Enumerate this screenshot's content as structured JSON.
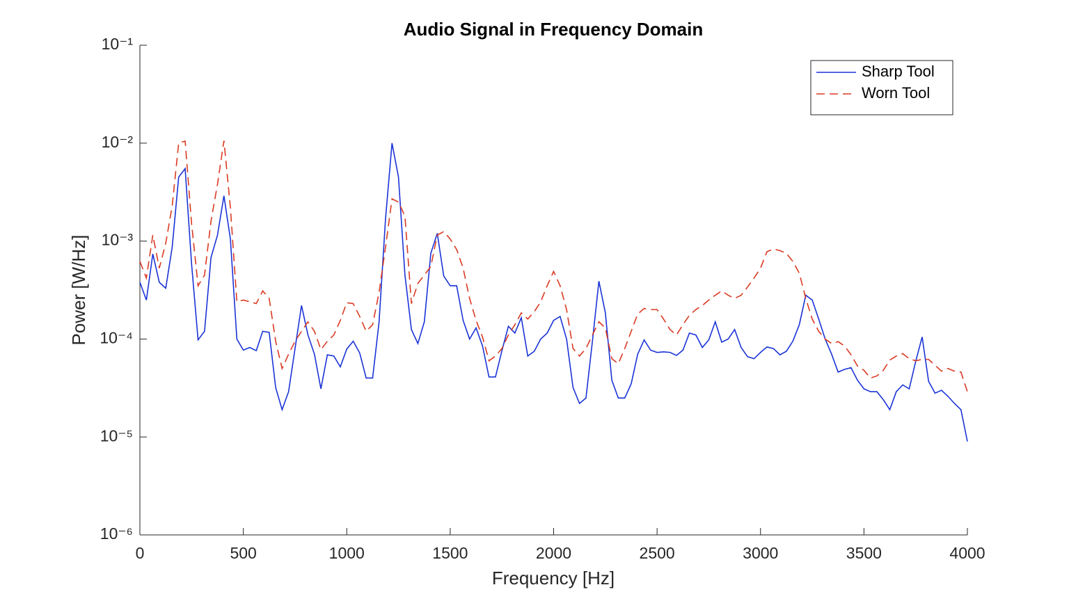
{
  "chart_data": {
    "type": "line",
    "title": "Audio Signal in Frequency Domain",
    "x_label": "Frequency [Hz]",
    "y_label": "Power [W/Hz]",
    "log_y": true,
    "grid": false,
    "legend": "northeast",
    "xlim": [
      0,
      4000
    ],
    "xticks": [
      0,
      500,
      1000,
      1500,
      2000,
      2500,
      3000,
      3500,
      4000
    ],
    "ylim": [
      1e-06,
      0.1
    ],
    "yticks": [
      {
        "value": 1e-06,
        "label": "10⁻⁶"
      },
      {
        "value": 1e-05,
        "label": "10⁻⁵"
      },
      {
        "value": 0.0001,
        "label": "10⁻⁴"
      },
      {
        "value": 0.001,
        "label": "10⁻³"
      },
      {
        "value": 0.01,
        "label": "10⁻²"
      },
      {
        "value": 0.1,
        "label": "10⁻¹"
      }
    ],
    "x": [
      0,
      31.25,
      62.5,
      93.75,
      125,
      156.25,
      187.5,
      218.75,
      250,
      281.25,
      312.5,
      343.75,
      375,
      406.25,
      437.5,
      468.75,
      500,
      531.25,
      562.5,
      593.75,
      625,
      656.25,
      687.5,
      718.75,
      750,
      781.25,
      812.5,
      843.75,
      875,
      906.25,
      937.5,
      968.75,
      1000,
      1031.25,
      1062.5,
      1093.75,
      1125,
      1156.25,
      1187.5,
      1218.75,
      1250,
      1281.25,
      1312.5,
      1343.75,
      1375,
      1406.25,
      1437.5,
      1468.75,
      1500,
      1531.25,
      1562.5,
      1593.75,
      1625,
      1656.25,
      1687.5,
      1718.75,
      1750,
      1781.25,
      1812.5,
      1843.75,
      1875,
      1906.25,
      1937.5,
      1968.75,
      2000,
      2031.25,
      2062.5,
      2093.75,
      2125,
      2156.25,
      2187.5,
      2218.75,
      2250,
      2281.25,
      2312.5,
      2343.75,
      2375,
      2406.25,
      2437.5,
      2468.75,
      2500,
      2531.25,
      2562.5,
      2593.75,
      2625,
      2656.25,
      2687.5,
      2718.75,
      2750,
      2781.25,
      2812.5,
      2843.75,
      2875,
      2906.25,
      2937.5,
      2968.75,
      3000,
      3031.25,
      3062.5,
      3093.75,
      3125,
      3156.25,
      3187.5,
      3218.75,
      3250,
      3281.25,
      3312.5,
      3343.75,
      3375,
      3406.25,
      3437.5,
      3468.75,
      3500,
      3531.25,
      3562.5,
      3593.75,
      3625,
      3656.25,
      3687.5,
      3718.75,
      3750,
      3781.25,
      3812.5,
      3843.75,
      3875,
      3906.25,
      3937.5,
      3968.75,
      4000
    ],
    "series": [
      {
        "name": "Sharp Tool",
        "color": "#1a33d6",
        "dash": "solid",
        "values": [
          0.00038,
          0.00025,
          0.00074,
          0.00038,
          0.00033,
          0.00087,
          0.0045,
          0.0055,
          0.00058,
          9.8e-05,
          0.00012,
          0.00068,
          0.00115,
          0.0029,
          0.00105,
          0.0001,
          7.7e-05,
          8.2e-05,
          7.6e-05,
          0.00012,
          0.000117,
          3.2e-05,
          1.9e-05,
          2.9e-05,
          8e-05,
          0.00022,
          0.00011,
          7e-05,
          3.1e-05,
          6.9e-05,
          6.7e-05,
          5.2e-05,
          7.9e-05,
          9.5e-05,
          7.2e-05,
          4e-05,
          4e-05,
          0.00015,
          0.0017,
          0.01,
          0.0045,
          0.00045,
          0.000125,
          9e-05,
          0.00015,
          0.00075,
          0.0012,
          0.00044,
          0.00035,
          0.00035,
          0.000155,
          0.0001,
          0.00013,
          8.5e-05,
          4.1e-05,
          4.1e-05,
          7.6e-05,
          0.000135,
          0.000115,
          0.000165,
          6.7e-05,
          7.5e-05,
          0.0001,
          0.000115,
          0.000155,
          0.00017,
          0.0001,
          3.2e-05,
          2.2e-05,
          2.5e-05,
          9.5e-05,
          0.00039,
          0.000185,
          3.8e-05,
          2.5e-05,
          2.5e-05,
          3.5e-05,
          7e-05,
          9.8e-05,
          7.7e-05,
          7.3e-05,
          7.4e-05,
          7.3e-05,
          6.8e-05,
          7.7e-05,
          0.000115,
          0.00011,
          8.2e-05,
          9.8e-05,
          0.00015,
          9.3e-05,
          0.0001,
          0.000125,
          8.2e-05,
          6.6e-05,
          6.3e-05,
          7.3e-05,
          8.3e-05,
          8e-05,
          6.9e-05,
          7.5e-05,
          9.5e-05,
          0.00014,
          0.00028,
          0.00025,
          0.00016,
          0.0001,
          7e-05,
          4.6e-05,
          4.9e-05,
          5.1e-05,
          3.8e-05,
          3.1e-05,
          2.9e-05,
          2.9e-05,
          2.4e-05,
          1.9e-05,
          2.9e-05,
          3.4e-05,
          3.1e-05,
          5.9e-05,
          0.000105,
          3.7e-05,
          2.8e-05,
          3e-05,
          2.6e-05,
          2.2e-05,
          1.9e-05,
          9e-06
        ]
      },
      {
        "name": "Worn Tool",
        "color": "#d93a22",
        "dash": "dashed",
        "values": [
          0.00062,
          0.00042,
          0.00115,
          0.00053,
          0.00095,
          0.0023,
          0.01,
          0.0105,
          0.0015,
          0.00035,
          0.00045,
          0.0016,
          0.0038,
          0.0106,
          0.0022,
          0.00024,
          0.00025,
          0.00024,
          0.00023,
          0.00031,
          0.00026,
          9.5e-05,
          5e-05,
          7e-05,
          9.5e-05,
          0.00012,
          0.00015,
          0.00012,
          7.8e-05,
          9.5e-05,
          0.00011,
          0.000155,
          0.000235,
          0.00023,
          0.00017,
          0.00012,
          0.00014,
          0.0003,
          0.00087,
          0.0027,
          0.0025,
          0.0018,
          0.00023,
          0.00037,
          0.00045,
          0.00055,
          0.00115,
          0.00125,
          0.00105,
          0.00082,
          0.00053,
          0.00026,
          0.000155,
          0.000105,
          6e-05,
          6.7e-05,
          8e-05,
          0.00011,
          0.00014,
          0.000185,
          0.00016,
          0.00019,
          0.00024,
          0.00035,
          0.00049,
          0.00035,
          0.0002,
          8e-05,
          6.7e-05,
          8e-05,
          0.00011,
          0.00015,
          0.00013,
          6.3e-05,
          5.6e-05,
          8e-05,
          0.00012,
          0.00018,
          0.000205,
          0.0002,
          0.0002,
          0.00016,
          0.000125,
          0.00011,
          0.00014,
          0.000175,
          0.0002,
          0.00022,
          0.00025,
          0.00028,
          0.00031,
          0.00028,
          0.00026,
          0.00028,
          0.00034,
          0.00042,
          0.00053,
          0.00078,
          0.00083,
          0.0008,
          0.00075,
          0.00062,
          0.00047,
          0.00026,
          0.00016,
          0.00012,
          0.0001,
          9e-05,
          9.4e-05,
          8.5e-05,
          6.9e-05,
          5.3e-05,
          4.8e-05,
          4e-05,
          4.2e-05,
          4.8e-05,
          6.1e-05,
          6.7e-05,
          7.1e-05,
          6.3e-05,
          6e-05,
          6.2e-05,
          6.2e-05,
          5.4e-05,
          4.7e-05,
          5e-05,
          4.7e-05,
          4.6e-05,
          2.9e-05
        ]
      }
    ]
  }
}
